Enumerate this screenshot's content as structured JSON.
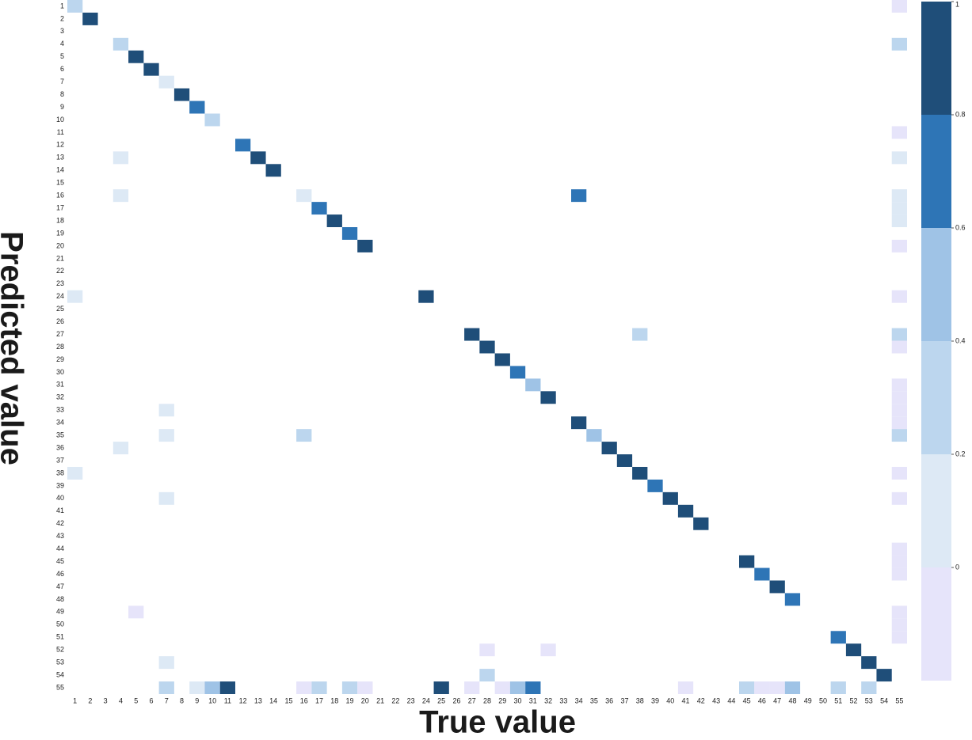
{
  "chart_data": {
    "type": "heatmap",
    "xlabel": "True value",
    "ylabel": "Predicted value",
    "xcategories": [
      1,
      2,
      3,
      4,
      5,
      6,
      7,
      8,
      9,
      10,
      11,
      12,
      13,
      14,
      15,
      16,
      17,
      18,
      19,
      20,
      21,
      22,
      23,
      24,
      25,
      26,
      27,
      28,
      29,
      30,
      31,
      32,
      33,
      34,
      35,
      36,
      37,
      38,
      39,
      40,
      41,
      42,
      43,
      44,
      45,
      46,
      47,
      48,
      49,
      50,
      51,
      52,
      53,
      54,
      55
    ],
    "ycategories": [
      1,
      2,
      3,
      4,
      5,
      6,
      7,
      8,
      9,
      10,
      11,
      12,
      13,
      14,
      15,
      16,
      17,
      18,
      19,
      20,
      21,
      22,
      23,
      24,
      25,
      26,
      27,
      28,
      29,
      30,
      31,
      32,
      33,
      34,
      35,
      36,
      37,
      38,
      39,
      40,
      41,
      42,
      43,
      44,
      45,
      46,
      47,
      48,
      49,
      50,
      51,
      52,
      53,
      54,
      55
    ],
    "clim": [
      -0.2,
      1
    ],
    "cticks": [
      0,
      0.2,
      0.4,
      0.6,
      0.8,
      1
    ],
    "color_bounds": [
      -0.2,
      0,
      0.2,
      0.4,
      0.6,
      0.8,
      1
    ],
    "colors": [
      "#e6e4fa",
      "#dde9f5",
      "#bcd6ee",
      "#9fc3e6",
      "#2e75b6",
      "#1f4e79"
    ],
    "cells": [
      {
        "x": 1,
        "y": 1,
        "value": 0.3
      },
      {
        "x": 55,
        "y": 1,
        "value": -0.1
      },
      {
        "x": 2,
        "y": 2,
        "value": 0.9
      },
      {
        "x": 4,
        "y": 4,
        "value": 0.3
      },
      {
        "x": 55,
        "y": 4,
        "value": 0.3
      },
      {
        "x": 5,
        "y": 5,
        "value": 0.9
      },
      {
        "x": 6,
        "y": 6,
        "value": 0.9
      },
      {
        "x": 7,
        "y": 7,
        "value": 0.1
      },
      {
        "x": 8,
        "y": 8,
        "value": 0.9
      },
      {
        "x": 9,
        "y": 9,
        "value": 0.7
      },
      {
        "x": 10,
        "y": 10,
        "value": 0.3
      },
      {
        "x": 55,
        "y": 11,
        "value": -0.1
      },
      {
        "x": 12,
        "y": 12,
        "value": 0.7
      },
      {
        "x": 4,
        "y": 13,
        "value": 0.1
      },
      {
        "x": 13,
        "y": 13,
        "value": 0.9
      },
      {
        "x": 55,
        "y": 13,
        "value": 0.1
      },
      {
        "x": 14,
        "y": 14,
        "value": 0.9
      },
      {
        "x": 4,
        "y": 16,
        "value": 0.1
      },
      {
        "x": 16,
        "y": 16,
        "value": 0.1
      },
      {
        "x": 34,
        "y": 16,
        "value": 0.7
      },
      {
        "x": 55,
        "y": 16,
        "value": 0.1
      },
      {
        "x": 17,
        "y": 17,
        "value": 0.7
      },
      {
        "x": 55,
        "y": 17,
        "value": 0.1
      },
      {
        "x": 18,
        "y": 18,
        "value": 0.9
      },
      {
        "x": 55,
        "y": 18,
        "value": 0.1
      },
      {
        "x": 19,
        "y": 19,
        "value": 0.7
      },
      {
        "x": 20,
        "y": 20,
        "value": 0.9
      },
      {
        "x": 55,
        "y": 20,
        "value": -0.1
      },
      {
        "x": 1,
        "y": 24,
        "value": 0.1
      },
      {
        "x": 24,
        "y": 24,
        "value": 0.9
      },
      {
        "x": 55,
        "y": 24,
        "value": -0.1
      },
      {
        "x": 27,
        "y": 27,
        "value": 0.9
      },
      {
        "x": 38,
        "y": 27,
        "value": 0.3
      },
      {
        "x": 55,
        "y": 27,
        "value": 0.3
      },
      {
        "x": 28,
        "y": 28,
        "value": 0.9
      },
      {
        "x": 55,
        "y": 28,
        "value": -0.1
      },
      {
        "x": 29,
        "y": 29,
        "value": 0.9
      },
      {
        "x": 30,
        "y": 30,
        "value": 0.7
      },
      {
        "x": 31,
        "y": 31,
        "value": 0.5
      },
      {
        "x": 55,
        "y": 31,
        "value": -0.1
      },
      {
        "x": 32,
        "y": 32,
        "value": 0.9
      },
      {
        "x": 55,
        "y": 32,
        "value": -0.1
      },
      {
        "x": 7,
        "y": 33,
        "value": 0.1
      },
      {
        "x": 55,
        "y": 33,
        "value": -0.1
      },
      {
        "x": 34,
        "y": 34,
        "value": 0.9
      },
      {
        "x": 55,
        "y": 34,
        "value": -0.1
      },
      {
        "x": 7,
        "y": 35,
        "value": 0.1
      },
      {
        "x": 16,
        "y": 35,
        "value": 0.3
      },
      {
        "x": 35,
        "y": 35,
        "value": 0.5
      },
      {
        "x": 55,
        "y": 35,
        "value": 0.3
      },
      {
        "x": 4,
        "y": 36,
        "value": 0.1
      },
      {
        "x": 36,
        "y": 36,
        "value": 0.9
      },
      {
        "x": 37,
        "y": 37,
        "value": 0.9
      },
      {
        "x": 1,
        "y": 38,
        "value": 0.1
      },
      {
        "x": 38,
        "y": 38,
        "value": 0.9
      },
      {
        "x": 55,
        "y": 38,
        "value": -0.1
      },
      {
        "x": 39,
        "y": 39,
        "value": 0.7
      },
      {
        "x": 7,
        "y": 40,
        "value": 0.1
      },
      {
        "x": 40,
        "y": 40,
        "value": 0.9
      },
      {
        "x": 55,
        "y": 40,
        "value": -0.1
      },
      {
        "x": 41,
        "y": 41,
        "value": 0.9
      },
      {
        "x": 42,
        "y": 42,
        "value": 0.9
      },
      {
        "x": 55,
        "y": 44,
        "value": -0.1
      },
      {
        "x": 45,
        "y": 45,
        "value": 0.9
      },
      {
        "x": 55,
        "y": 45,
        "value": -0.1
      },
      {
        "x": 46,
        "y": 46,
        "value": 0.7
      },
      {
        "x": 55,
        "y": 46,
        "value": -0.1
      },
      {
        "x": 47,
        "y": 47,
        "value": 0.9
      },
      {
        "x": 48,
        "y": 48,
        "value": 0.7
      },
      {
        "x": 5,
        "y": 49,
        "value": -0.1
      },
      {
        "x": 55,
        "y": 49,
        "value": -0.1
      },
      {
        "x": 55,
        "y": 50,
        "value": -0.1
      },
      {
        "x": 51,
        "y": 51,
        "value": 0.7
      },
      {
        "x": 55,
        "y": 51,
        "value": -0.1
      },
      {
        "x": 28,
        "y": 52,
        "value": -0.1
      },
      {
        "x": 32,
        "y": 52,
        "value": -0.1
      },
      {
        "x": 52,
        "y": 52,
        "value": 0.9
      },
      {
        "x": 7,
        "y": 53,
        "value": 0.1
      },
      {
        "x": 53,
        "y": 53,
        "value": 0.9
      },
      {
        "x": 28,
        "y": 54,
        "value": 0.3
      },
      {
        "x": 54,
        "y": 54,
        "value": 0.9
      },
      {
        "x": 7,
        "y": 55,
        "value": 0.3
      },
      {
        "x": 9,
        "y": 55,
        "value": 0.1
      },
      {
        "x": 10,
        "y": 55,
        "value": 0.5
      },
      {
        "x": 11,
        "y": 55,
        "value": 0.9
      },
      {
        "x": 16,
        "y": 55,
        "value": -0.1
      },
      {
        "x": 17,
        "y": 55,
        "value": 0.3
      },
      {
        "x": 19,
        "y": 55,
        "value": 0.3
      },
      {
        "x": 20,
        "y": 55,
        "value": -0.1
      },
      {
        "x": 25,
        "y": 55,
        "value": 0.9
      },
      {
        "x": 27,
        "y": 55,
        "value": -0.1
      },
      {
        "x": 29,
        "y": 55,
        "value": -0.1
      },
      {
        "x": 30,
        "y": 55,
        "value": 0.5
      },
      {
        "x": 31,
        "y": 55,
        "value": 0.7
      },
      {
        "x": 41,
        "y": 55,
        "value": -0.1
      },
      {
        "x": 45,
        "y": 55,
        "value": 0.3
      },
      {
        "x": 46,
        "y": 55,
        "value": -0.1
      },
      {
        "x": 47,
        "y": 55,
        "value": -0.1
      },
      {
        "x": 48,
        "y": 55,
        "value": 0.5
      },
      {
        "x": 51,
        "y": 55,
        "value": 0.3
      },
      {
        "x": 53,
        "y": 55,
        "value": 0.3
      }
    ]
  }
}
